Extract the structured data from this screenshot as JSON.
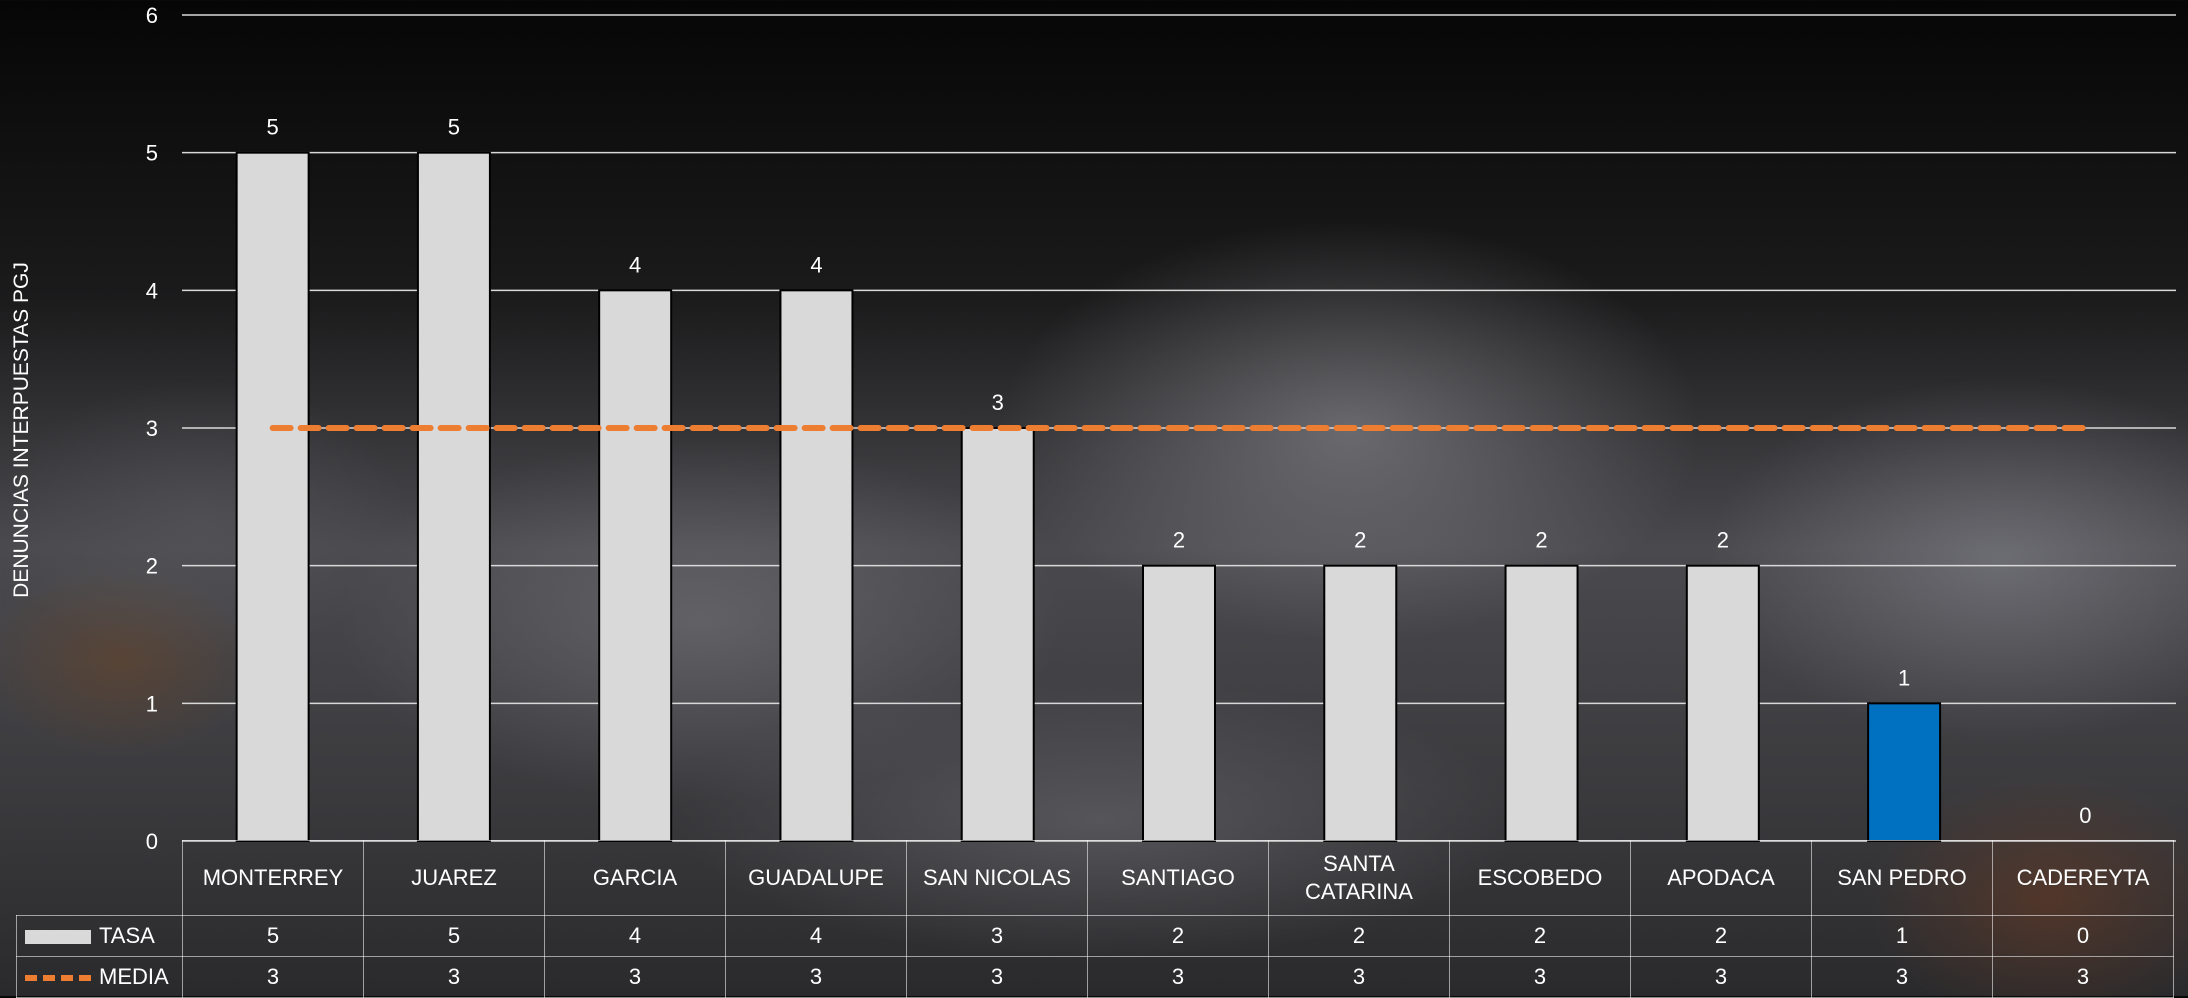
{
  "chart_data": {
    "type": "bar",
    "categories": [
      "MONTERREY",
      "JUAREZ",
      "GARCIA",
      "GUADALUPE",
      "SAN NICOLAS",
      "SANTIAGO",
      "SANTA CATARINA",
      "ESCOBEDO",
      "APODACA",
      "SAN PEDRO",
      "CADEREYTA"
    ],
    "category_display": [
      [
        "MONTERREY"
      ],
      [
        "JUAREZ"
      ],
      [
        "GARCIA"
      ],
      [
        "GUADALUPE"
      ],
      [
        "SAN NICOLAS"
      ],
      [
        "SANTIAGO"
      ],
      [
        "SANTA",
        "CATARINA"
      ],
      [
        "ESCOBEDO"
      ],
      [
        "APODACA"
      ],
      [
        "SAN PEDRO"
      ],
      [
        "CADEREYTA"
      ]
    ],
    "series": [
      {
        "name": "TASA",
        "type": "bar",
        "values": [
          5,
          5,
          4,
          4,
          3,
          2,
          2,
          2,
          2,
          1,
          0
        ],
        "color": "#d9d9d9",
        "highlight": {
          "index": 9,
          "color": "#0070c0"
        }
      },
      {
        "name": "MEDIA",
        "type": "line",
        "style": "dashed",
        "values": [
          3,
          3,
          3,
          3,
          3,
          3,
          3,
          3,
          3,
          3,
          3
        ],
        "color": "#ed7d31"
      }
    ],
    "ylabel": "DENUNCIAS INTERPUESTAS PGJ",
    "ylim": [
      0,
      6
    ],
    "yticks": [
      0,
      1,
      2,
      3,
      4,
      5,
      6
    ],
    "grid": true,
    "data_labels": true,
    "legend": "data-table",
    "table": {
      "rows": [
        {
          "name": "TASA",
          "values": [
            "5",
            "5",
            "4",
            "4",
            "3",
            "2",
            "2",
            "2",
            "2",
            "1",
            "0"
          ]
        },
        {
          "name": "MEDIA",
          "values": [
            "3",
            "3",
            "3",
            "3",
            "3",
            "3",
            "3",
            "3",
            "3",
            "3",
            "3"
          ]
        }
      ]
    }
  }
}
